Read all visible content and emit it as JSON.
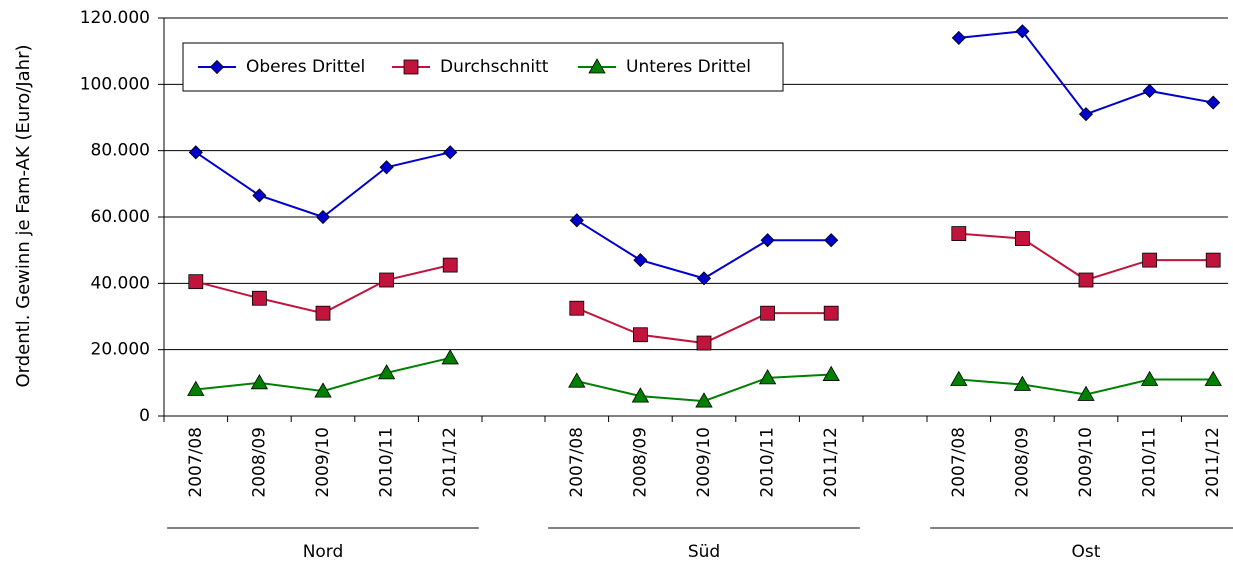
{
  "chart_data": {
    "type": "line",
    "title": "",
    "ylabel": "Ordentl. Gewinn je Fam-AK (Euro/Jahr)",
    "xlabel": "",
    "ylim": [
      0,
      120000
    ],
    "yticks": [
      0,
      20000,
      40000,
      60000,
      80000,
      100000,
      120000
    ],
    "ytick_labels": [
      "0",
      "20.000",
      "40.000",
      "60.000",
      "80.000",
      "100.000",
      "120.000"
    ],
    "grid": "horizontal",
    "legend_position": "top-left",
    "groups": [
      {
        "name": "Nord",
        "categories": [
          "2007/08",
          "2008/09",
          "2009/10",
          "2010/11",
          "2011/12"
        ]
      },
      {
        "name": "Süd",
        "categories": [
          "2007/08",
          "2008/09",
          "2009/10",
          "2010/11",
          "2011/12"
        ]
      },
      {
        "name": "Ost",
        "categories": [
          "2007/08",
          "2008/09",
          "2009/10",
          "2010/11",
          "2011/12"
        ]
      }
    ],
    "series": [
      {
        "name": "Oberes Drittel",
        "color": "#0000CC",
        "marker": "diamond",
        "values": [
          [
            79500,
            66500,
            60000,
            75000,
            79500
          ],
          [
            59000,
            47000,
            41500,
            53000,
            53000
          ],
          [
            114000,
            116000,
            91000,
            98000,
            94500
          ]
        ]
      },
      {
        "name": "Durchschnitt",
        "color": "#C0143C",
        "marker": "square",
        "values": [
          [
            40500,
            35500,
            31000,
            41000,
            45500
          ],
          [
            32500,
            24500,
            22000,
            31000,
            31000
          ],
          [
            55000,
            53500,
            41000,
            47000,
            47000
          ]
        ]
      },
      {
        "name": "Unteres Drittel",
        "color": "#008000",
        "marker": "triangle",
        "values": [
          [
            8000,
            10000,
            7500,
            13000,
            17500
          ],
          [
            10500,
            6000,
            4500,
            11500,
            12500
          ],
          [
            11000,
            9500,
            6500,
            11000,
            11000
          ]
        ]
      }
    ]
  }
}
